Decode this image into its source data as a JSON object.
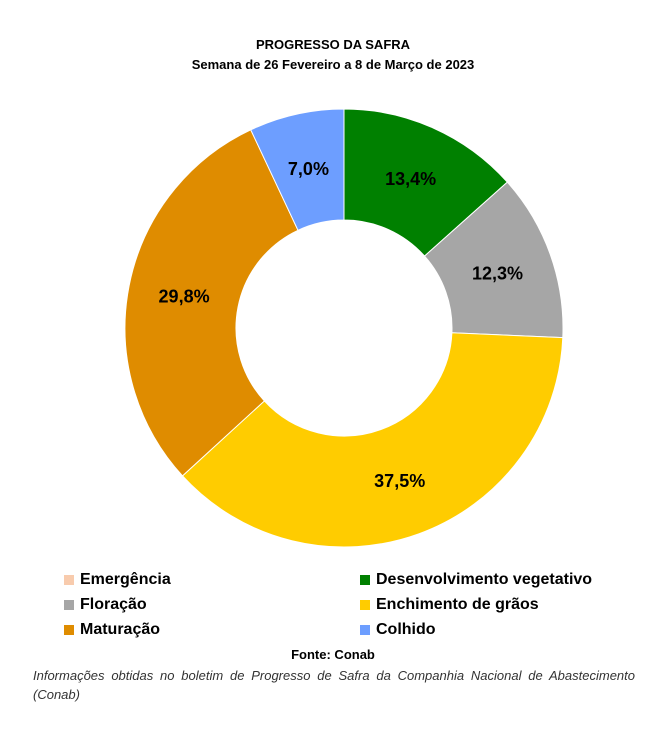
{
  "chart_data": {
    "type": "pie",
    "title": "PROGRESSO DA SAFRA",
    "subtitle": "Semana de 26 Fevereiro a 8 de Março de 2023",
    "categories": [
      "Emergência",
      "Desenvolvimento vegetativo",
      "Floração",
      "Enchimento de grãos",
      "Maturação",
      "Colhido"
    ],
    "values": [
      0.0,
      13.4,
      12.3,
      37.5,
      29.8,
      7.0
    ],
    "data_labels": [
      "",
      "13,4%",
      "12,3%",
      "37,5%",
      "29,8%",
      "7,0%"
    ],
    "colors": [
      "#f8cbad",
      "#008000",
      "#a6a6a6",
      "#ffcc00",
      "#df8c00",
      "#6d9eff"
    ],
    "legend_placement": "bottom"
  },
  "source": "Fonte: Conab",
  "note": "Informações obtidas no boletim de Progresso de Safra da Companhia Nacional de Abastecimento (Conab)"
}
